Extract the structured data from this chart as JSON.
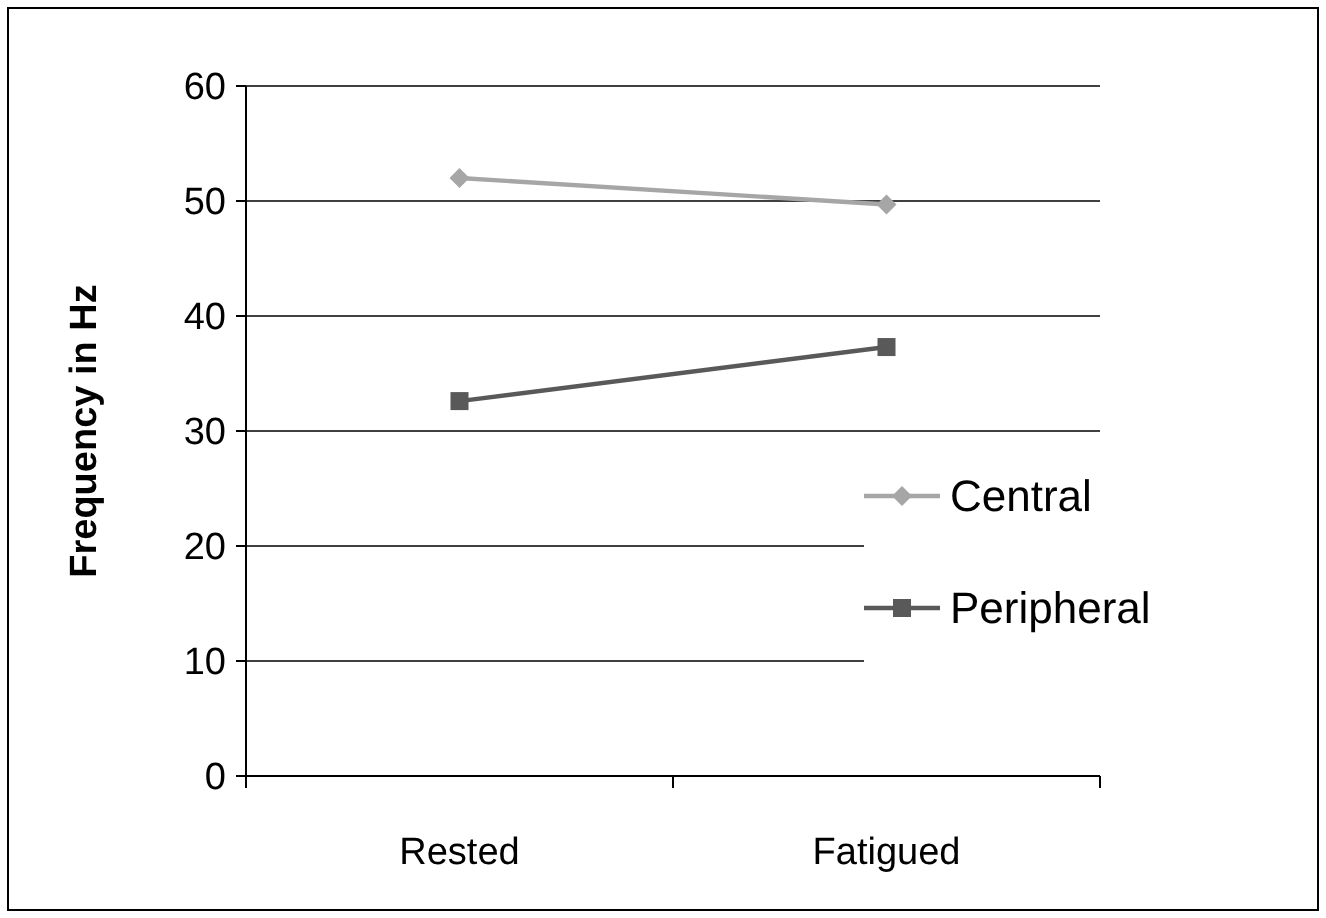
{
  "chart_data": {
    "type": "line",
    "ylabel": "Frequency in Hz",
    "categories": [
      "Rested",
      "Fatigued"
    ],
    "series": [
      {
        "name": "Central",
        "color": "#a6a6a6",
        "marker": "diamond",
        "values": [
          52,
          49.7
        ]
      },
      {
        "name": "Peripheral",
        "color": "#595959",
        "marker": "square",
        "values": [
          32.6,
          37.3
        ]
      }
    ],
    "ylim": [
      0,
      60
    ],
    "yticks": [
      0,
      10,
      20,
      30,
      40,
      50,
      60
    ],
    "grid": "y",
    "legend": "right"
  }
}
